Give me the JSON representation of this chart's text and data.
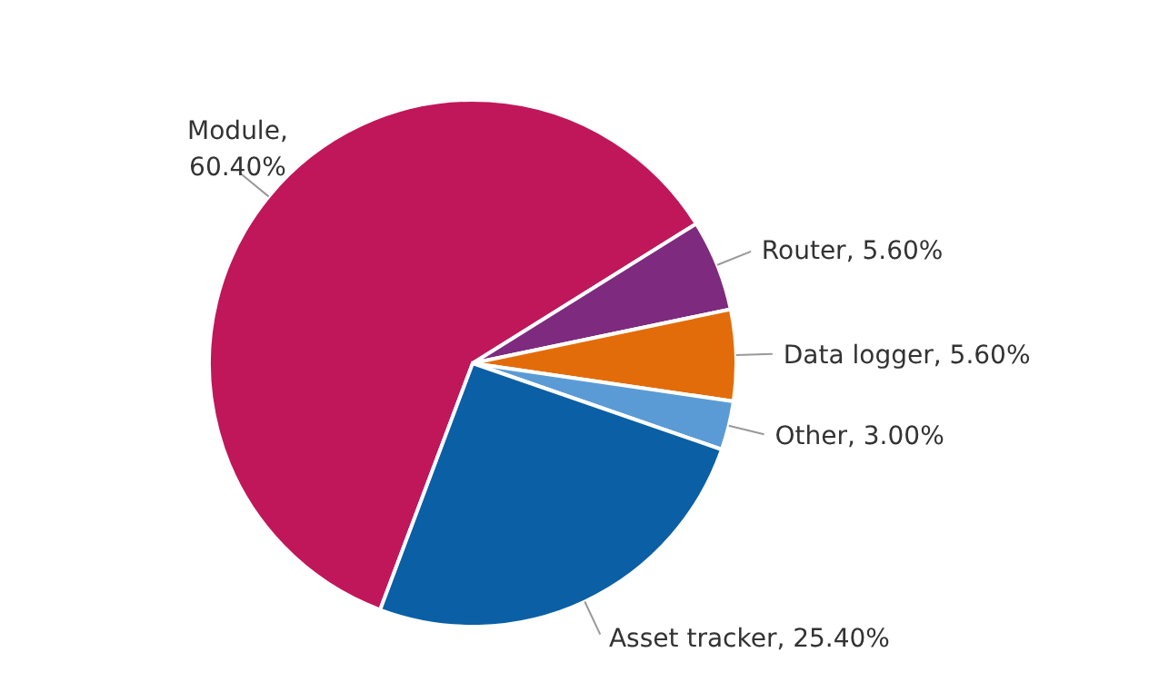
{
  "chart_data": {
    "type": "pie",
    "categories": [
      "Module",
      "Router",
      "Data logger",
      "Other",
      "Asset tracker"
    ],
    "values": [
      60.4,
      5.6,
      5.6,
      3.0,
      25.4
    ],
    "value_labels": [
      ", 60.40%",
      ", 5.60%",
      ", 5.60%",
      ", 3.00%",
      ", 25.40%"
    ],
    "colors": [
      "#c0175a",
      "#7e2a7e",
      "#e36c0a",
      "#5b9bd5",
      "#0b5fa5"
    ],
    "legend": false
  }
}
